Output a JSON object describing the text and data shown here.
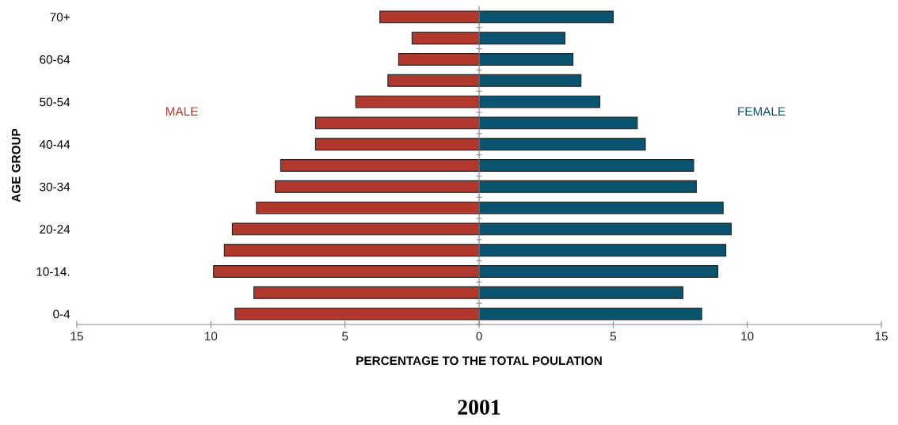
{
  "chart_data": {
    "type": "bar",
    "orientation": "horizontal",
    "title": "2001",
    "xlabel": "PERCENTAGE TO THE TOTAL POULATION",
    "ylabel": "AGE GROUP",
    "categories": [
      "70+",
      null,
      "60-64",
      null,
      "50-54",
      null,
      "40-44",
      null,
      "30-34",
      null,
      "20-24",
      null,
      "10-14.",
      null,
      "0-4"
    ],
    "series": [
      {
        "name": "MALE",
        "color": "#b0382c",
        "values": [
          -3.7,
          -2.5,
          -3.0,
          -3.4,
          -4.6,
          -6.1,
          -6.1,
          -7.4,
          -7.6,
          -8.3,
          -9.2,
          -9.5,
          -9.9,
          -8.4,
          -9.1
        ]
      },
      {
        "name": "FEMALE",
        "color": "#0b5470",
        "values": [
          5.0,
          3.2,
          3.5,
          3.8,
          4.5,
          5.9,
          6.2,
          8.0,
          8.1,
          9.1,
          9.4,
          9.2,
          8.9,
          7.6,
          8.3
        ]
      }
    ],
    "xlim": [
      -15,
      15
    ],
    "xticks": [
      {
        "value": -15,
        "label": "15"
      },
      {
        "value": -10,
        "label": "10"
      },
      {
        "value": -5,
        "label": "5"
      },
      0,
      5,
      10,
      15
    ],
    "stacked": true,
    "legend": false
  }
}
